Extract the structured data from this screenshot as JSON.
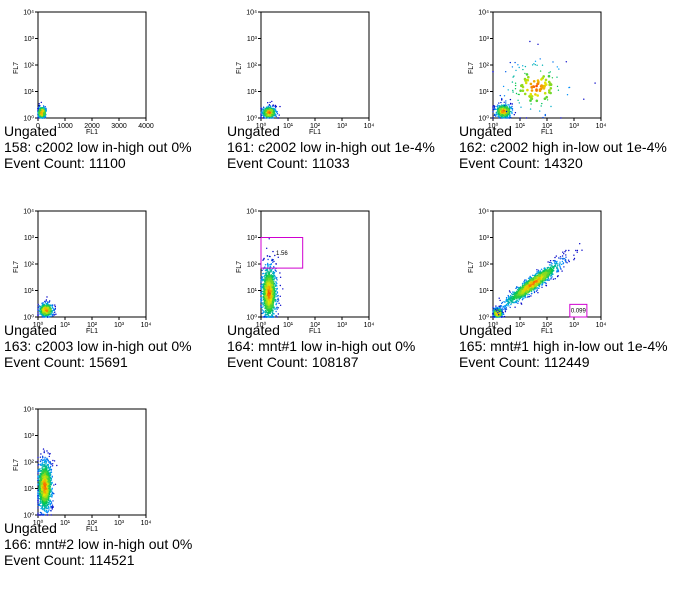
{
  "chart_data": [
    {
      "type": "scatter",
      "title": "Ungated",
      "name": "158: c2002 low in-high out 0%",
      "event_count": "Event Count: 11100",
      "xlabel": "FL1",
      "ylabel": "FL7",
      "x_scale": "linear",
      "x_ticks": [
        "0",
        "1000",
        "2000",
        "3000",
        "4000"
      ],
      "xlim": [
        0,
        4096
      ],
      "y_scale": "log",
      "y_ticks": [
        "10⁰",
        "10¹",
        "10²",
        "10³",
        "10⁴"
      ],
      "ylim": [
        1,
        10000
      ],
      "clusters": [
        {
          "x": 150,
          "y": 1.6,
          "count": 300,
          "spread_x": 90,
          "spread_y": 0.12
        }
      ],
      "gates": []
    },
    {
      "type": "scatter",
      "title": "Ungated",
      "name": "161: c2002 low in-high out 1e-4%",
      "event_count": "Event Count: 11033",
      "xlabel": "FL1",
      "ylabel": "FL7",
      "x_scale": "log",
      "x_ticks": [
        "10⁰",
        "10¹",
        "10²",
        "10³",
        "10⁴"
      ],
      "xlim": [
        1,
        10000
      ],
      "y_scale": "log",
      "y_ticks": [
        "10⁰",
        "10¹",
        "10²",
        "10³",
        "10⁴"
      ],
      "ylim": [
        1,
        10000
      ],
      "clusters": [
        {
          "x": 2.0,
          "y": 1.6,
          "count": 320,
          "spread_x": 0.14,
          "spread_y": 0.12
        }
      ],
      "gates": []
    },
    {
      "type": "scatter",
      "title": "Ungated",
      "name": "162: c2002 high in-low out 1e-4%",
      "event_count": "Event Count: 14320",
      "xlabel": "FL1",
      "ylabel": "FL7",
      "x_scale": "log",
      "x_ticks": [
        "10⁰",
        "10¹",
        "10²",
        "10³",
        "10⁴"
      ],
      "xlim": [
        1,
        10000
      ],
      "y_scale": "log",
      "y_ticks": [
        "10⁰",
        "10¹",
        "10²",
        "10³",
        "10⁴"
      ],
      "ylim": [
        1,
        10000
      ],
      "clusters": [
        {
          "x": 2.5,
          "y": 1.8,
          "count": 360,
          "spread_x": 0.16,
          "spread_y": 0.14
        },
        {
          "x": 40,
          "y": 15,
          "count": 140,
          "spread_x": 0.6,
          "spread_y": 0.5
        }
      ],
      "gates": []
    },
    {
      "type": "scatter",
      "title": "Ungated",
      "name": "163: c2003 low in-high out 0%",
      "event_count": "Event Count: 15691",
      "xlabel": "FL1",
      "ylabel": "FL7",
      "x_scale": "log",
      "x_ticks": [
        "10⁰",
        "10¹",
        "10²",
        "10³",
        "10⁴"
      ],
      "xlim": [
        1,
        10000
      ],
      "y_scale": "log",
      "y_ticks": [
        "10⁰",
        "10¹",
        "10²",
        "10³",
        "10⁴"
      ],
      "ylim": [
        1,
        10000
      ],
      "clusters": [
        {
          "x": 2.0,
          "y": 1.8,
          "count": 340,
          "spread_x": 0.14,
          "spread_y": 0.14
        }
      ],
      "gates": []
    },
    {
      "type": "scatter",
      "title": "Ungated",
      "name": "164: mnt#1 low in-high out 0%",
      "event_count": "Event Count: 108187",
      "xlabel": "FL1",
      "ylabel": "FL7",
      "x_scale": "log",
      "x_ticks": [
        "10⁰",
        "10¹",
        "10²",
        "10³",
        "10⁴"
      ],
      "xlim": [
        1,
        10000
      ],
      "y_scale": "log",
      "y_ticks": [
        "10⁰",
        "10¹",
        "10²",
        "10³",
        "10⁴"
      ],
      "ylim": [
        1,
        10000
      ],
      "clusters": [
        {
          "x": 2.0,
          "y": 8,
          "count": 900,
          "spread_x": 0.15,
          "spread_y": 0.55
        }
      ],
      "gates": [
        {
          "label": "1.56",
          "x": [
            1,
            35
          ],
          "y": [
            70,
            1000
          ]
        }
      ]
    },
    {
      "type": "scatter",
      "title": "Ungated",
      "name": "165: mnt#1 high in-low out 1e-4%",
      "event_count": "Event Count: 112449",
      "xlabel": "FL1",
      "ylabel": "FL7",
      "x_scale": "log",
      "x_ticks": [
        "10⁰",
        "10¹",
        "10²",
        "10³",
        "10⁴"
      ],
      "xlim": [
        1,
        10000
      ],
      "y_scale": "log",
      "y_ticks": [
        "10⁰",
        "10¹",
        "10²",
        "10³",
        "10⁴"
      ],
      "ylim": [
        1,
        10000
      ],
      "clusters": [
        {
          "x": 1.5,
          "y": 1.4,
          "count": 250,
          "spread_x": 0.1,
          "spread_y": 0.1
        },
        {
          "x": 30,
          "y": 18,
          "count": 1100,
          "spread_x": 0.55,
          "spread_y": 0.45,
          "diagonal": true
        }
      ],
      "gates": [
        {
          "label": "0.099",
          "x": [
            700,
            3000
          ],
          "y": [
            1,
            3
          ]
        }
      ]
    },
    {
      "type": "scatter",
      "title": "Ungated",
      "name": "166: mnt#2 low in-high out 0%",
      "event_count": "Event Count: 114521",
      "xlabel": "FL1",
      "ylabel": "FL7",
      "x_scale": "log",
      "x_ticks": [
        "10⁰",
        "10¹",
        "10²",
        "10³",
        "10⁴"
      ],
      "xlim": [
        1,
        10000
      ],
      "y_scale": "log",
      "y_ticks": [
        "10⁰",
        "10¹",
        "10²",
        "10³",
        "10⁴"
      ],
      "ylim": [
        1,
        10000
      ],
      "clusters": [
        {
          "x": 1.8,
          "y": 12,
          "count": 1000,
          "spread_x": 0.14,
          "spread_y": 0.5
        }
      ],
      "gates": []
    }
  ]
}
